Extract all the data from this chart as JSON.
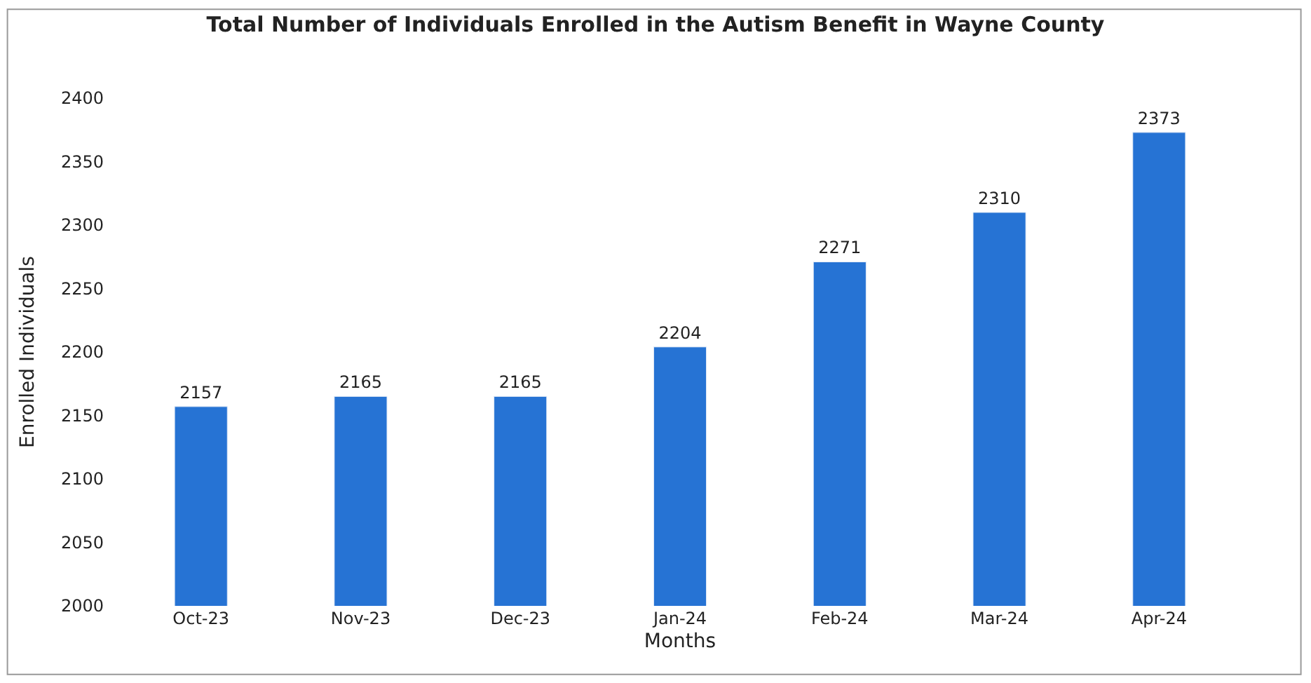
{
  "chart_data": {
    "type": "bar",
    "title": "Total Number of Individuals Enrolled in the Autism Benefit in Wayne County",
    "xlabel": "Months",
    "ylabel": "Enrolled Individuals",
    "categories": [
      "Oct-23",
      "Nov-23",
      "Dec-23",
      "Jan-24",
      "Feb-24",
      "Mar-24",
      "Apr-24"
    ],
    "values": [
      2157,
      2165,
      2165,
      2204,
      2271,
      2310,
      2373
    ],
    "color": "#2673d4",
    "ylim": [
      2000,
      2400
    ],
    "yticks": [
      2000,
      2050,
      2100,
      2150,
      2200,
      2250,
      2300,
      2350,
      2400
    ],
    "data_labels": true
  }
}
